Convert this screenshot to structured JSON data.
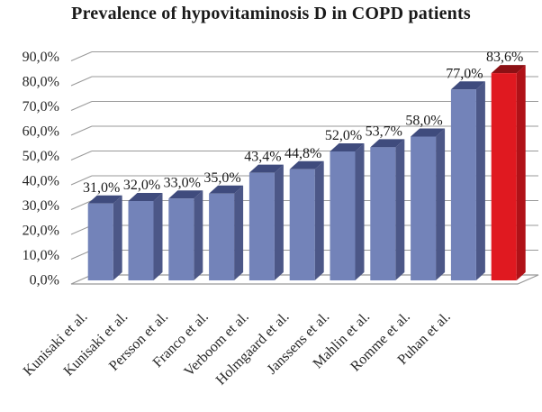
{
  "chart_data": {
    "type": "bar",
    "style": "3d-column",
    "title": "Prevalence of hypovitaminosis D in COPD patients",
    "categories": [
      "Kunisaki et al.",
      "Kunisaki et al.",
      "Persson et al.",
      "Franco et al.",
      "Verboom et al.",
      "Holmgaard et al.",
      "Janssens et al.",
      "Mahlin et al.",
      "Romme et al.",
      "Puhan et al.",
      ""
    ],
    "values": [
      31.0,
      32.0,
      33.0,
      35.0,
      43.4,
      44.8,
      52.0,
      53.7,
      58.0,
      77.0,
      83.6
    ],
    "value_labels": [
      "31,0%",
      "32,0%",
      "33,0%",
      "35,0%",
      "43,4%",
      "44,8%",
      "52,0%",
      "53,7%",
      "58,0%",
      "77,0%",
      "83,6%"
    ],
    "y_tick_labels": [
      "0,0%",
      "10,0%",
      "20,0%",
      "30,0%",
      "40,0%",
      "50,0%",
      "60,0%",
      "70,0%",
      "80,0%",
      "90,0%"
    ],
    "y_tick_values": [
      0,
      10,
      20,
      30,
      40,
      50,
      60,
      70,
      80,
      90
    ],
    "ylim": [
      0,
      90
    ],
    "xlabel": "",
    "ylabel": "",
    "grid": true,
    "legend_position": "none",
    "highlight_index": 10,
    "colors": {
      "bar_front": "#7383B9",
      "bar_side": "#4C5787",
      "bar_top": "#3F4B7D",
      "highlight_front": "#E01920",
      "highlight_side": "#B01218",
      "highlight_top": "#8C1014",
      "gridline": "#999999",
      "floor_edge": "#999999",
      "title_text": "#1A1A1A",
      "label_text": "#262626"
    }
  }
}
